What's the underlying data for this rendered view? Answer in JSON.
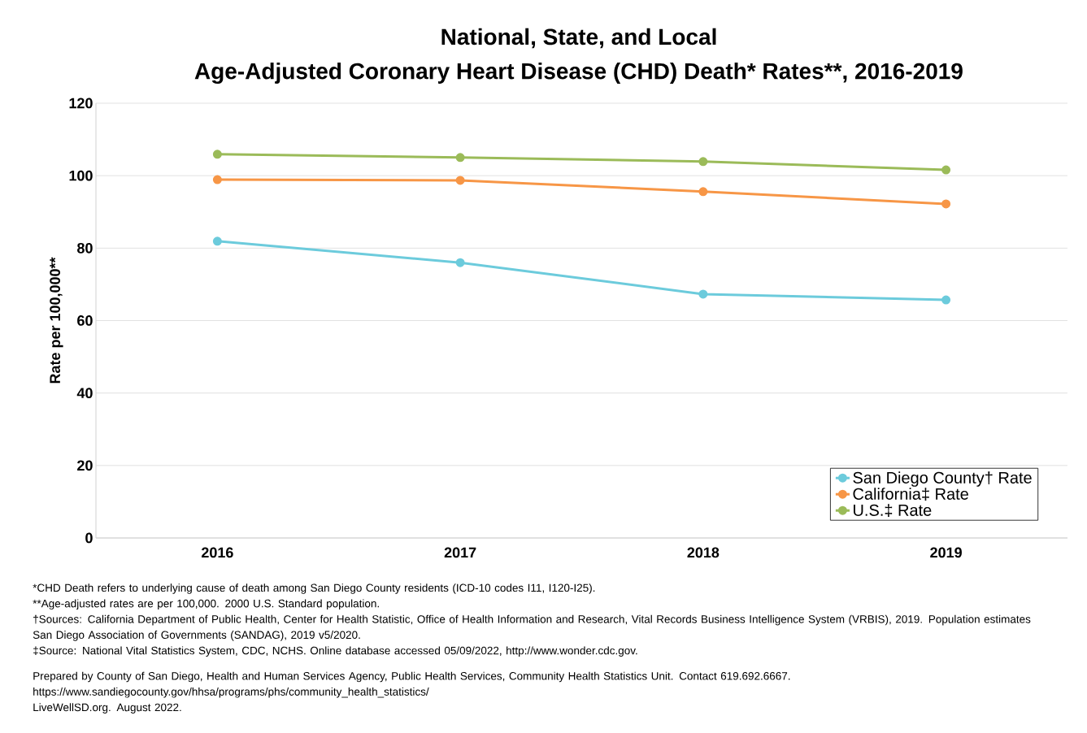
{
  "chart_data": {
    "type": "line",
    "title": "National, State, and Local",
    "subtitle": "Age-Adjusted Coronary Heart Disease (CHD) Death* Rates**, 2016-2019",
    "ylabel": "Rate per 100,000**",
    "categories": [
      "2016",
      "2017",
      "2018",
      "2019"
    ],
    "series": [
      {
        "name": "San Diego County† Rate",
        "color": "#6ccbdc",
        "values": [
          81.9,
          76.0,
          67.3,
          65.7
        ]
      },
      {
        "name": "California‡ Rate",
        "color": "#f79646",
        "values": [
          98.9,
          98.7,
          95.6,
          92.2
        ]
      },
      {
        "name": "U.S.‡ Rate",
        "color": "#9bbb59",
        "values": [
          105.9,
          105.0,
          103.9,
          101.6
        ]
      }
    ],
    "ylim": [
      0,
      120
    ],
    "yticks": [
      0,
      20,
      40,
      60,
      80,
      100,
      120
    ],
    "grid": "y",
    "legend": "bottom right",
    "marker": "circle",
    "line_style": "solid",
    "annotations": [
      "*CHD Death refers to underlying cause of death among San Diego County residents (ICD-10 codes I11, I120-I25).",
      "**Age-adjusted rates are per 100,000. 2000 U.S. Standard population.",
      "†Sources: California Department of Public Health, Center for Health Statistic, Office of Health Information and Research, Vital Records Business Intelligence System (VRBIS), 2019. Population estimates San Diego Association of Governments (SANDAG), 2019 v5/2020.",
      "‡Source: National Vital Statistics System, CDC, NCHS. Online database accessed 05/09/2022, http://www.wonder.cdc.gov.",
      "Prepared by County of San Diego, Health and Human Services Agency, Public Health Services, Community Health Statistics Unit. Contact 619.692.6667.",
      "https://www.sandiegocounty.gov/hhsa/programs/phs/community_health_statistics/",
      "LiveWellSD.org. August 2022."
    ]
  }
}
